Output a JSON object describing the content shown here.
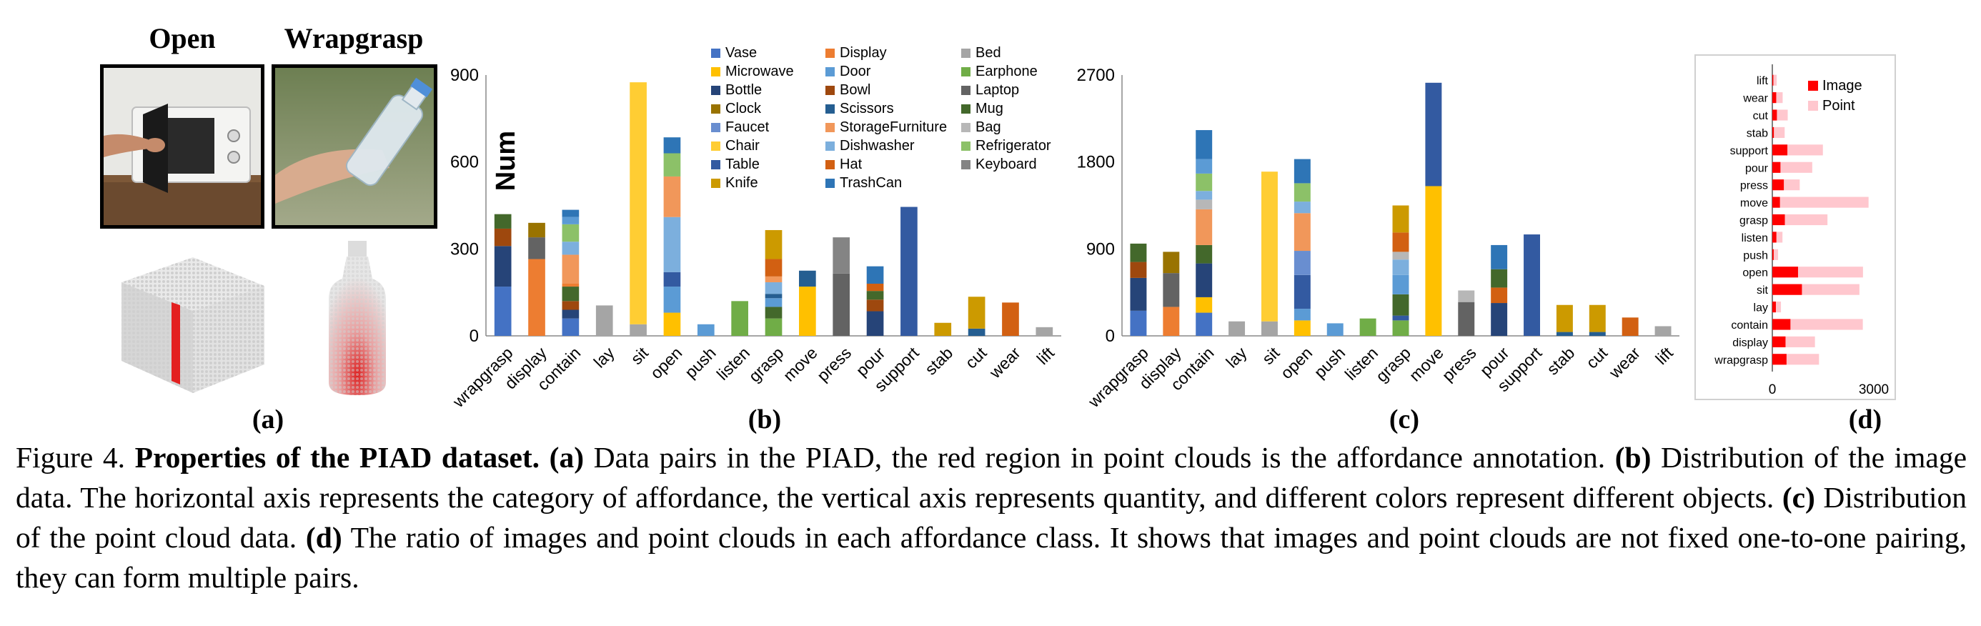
{
  "panel_a": {
    "titles": [
      "Open",
      "Wrapgrasp"
    ],
    "label": "(a)"
  },
  "panel_b": {
    "label": "(b)",
    "ylabel": "Num"
  },
  "panel_c": {
    "label": "(c)"
  },
  "panel_d": {
    "label": "(d)"
  },
  "colors": {
    "Vase": "#4472c4",
    "Display": "#ed7d31",
    "Bed": "#a5a5a5",
    "Microwave": "#ffc000",
    "Door": "#5b9bd5",
    "Earphone": "#70ad47",
    "Bottle": "#264478",
    "Bowl": "#9e480e",
    "Laptop": "#636363",
    "Clock": "#997300",
    "Scissors": "#255e91",
    "Mug": "#43682b",
    "Faucet": "#698ed0",
    "StorageFurniture": "#f1975a",
    "Bag": "#b7b7b7",
    "Chair": "#ffcd33",
    "Dishwasher": "#7cafdd",
    "Refrigerator": "#8cc168",
    "Table": "#335aa1",
    "Hat": "#d26012",
    "Keyboard": "#848484",
    "Knife": "#cc9a00",
    "TrashCan": "#2e75b6",
    "image_bar": "#ff0000",
    "point_bar": "#ffc7ce"
  },
  "chart_data": [
    {
      "type": "bar",
      "stacked": true,
      "title": "",
      "xlabel": "",
      "ylabel": "Num",
      "ylim": [
        0,
        900
      ],
      "yticks": [
        "0",
        "300",
        "600",
        "900"
      ],
      "categories": [
        "wrapgrasp",
        "display",
        "contain",
        "lay",
        "sit",
        "open",
        "push",
        "listen",
        "grasp",
        "move",
        "press",
        "pour",
        "support",
        "stab",
        "cut",
        "wear",
        "lift"
      ],
      "legend": [
        "Vase",
        "Display",
        "Bed",
        "Microwave",
        "Door",
        "Earphone",
        "Bottle",
        "Bowl",
        "Laptop",
        "Clock",
        "Scissors",
        "Mug",
        "Faucet",
        "StorageFurniture",
        "Bag",
        "Chair",
        "Dishwasher",
        "Refrigerator",
        "Table",
        "Hat",
        "Keyboard",
        "Knife",
        "TrashCan"
      ],
      "stacks": [
        [
          [
            "Vase",
            170
          ],
          [
            "Bottle",
            140
          ],
          [
            "Bowl",
            60
          ],
          [
            "Mug",
            50
          ]
        ],
        [
          [
            "Display",
            265
          ],
          [
            "Laptop",
            75
          ],
          [
            "Clock",
            50
          ]
        ],
        [
          [
            "Vase",
            60
          ],
          [
            "Bottle",
            30
          ],
          [
            "Bowl",
            30
          ],
          [
            "Mug",
            50
          ],
          [
            "Display",
            10
          ],
          [
            "StorageFurniture",
            100
          ],
          [
            "Dishwasher",
            45
          ],
          [
            "Refrigerator",
            60
          ],
          [
            "Door",
            25
          ],
          [
            "TrashCan",
            25
          ]
        ],
        [
          [
            "Bed",
            105
          ]
        ],
        [
          [
            "Bed",
            40
          ],
          [
            "Chair",
            835
          ]
        ],
        [
          [
            "Microwave",
            80
          ],
          [
            "Door",
            90
          ],
          [
            "Table",
            50
          ],
          [
            "Dishwasher",
            190
          ],
          [
            "StorageFurniture",
            140
          ],
          [
            "Refrigerator",
            80
          ],
          [
            "TrashCan",
            55
          ]
        ],
        [
          [
            "Door",
            40
          ]
        ],
        [
          [
            "Earphone",
            120
          ]
        ],
        [
          [
            "Earphone",
            60
          ],
          [
            "Mug",
            40
          ],
          [
            "Door",
            30
          ],
          [
            "Scissors",
            15
          ],
          [
            "Dishwasher",
            40
          ],
          [
            "StorageFurniture",
            20
          ],
          [
            "Hat",
            60
          ],
          [
            "Knife",
            100
          ]
        ],
        [
          [
            "Microwave",
            170
          ],
          [
            "Scissors",
            55
          ]
        ],
        [
          [
            "Laptop",
            215
          ],
          [
            "Keyboard",
            125
          ]
        ],
        [
          [
            "Bottle",
            85
          ],
          [
            "Bowl",
            40
          ],
          [
            "Mug",
            30
          ],
          [
            "Hat",
            25
          ],
          [
            "TrashCan",
            60
          ]
        ],
        [
          [
            "Table",
            445
          ]
        ],
        [
          [
            "Knife",
            45
          ]
        ],
        [
          [
            "Scissors",
            25
          ],
          [
            "Knife",
            110
          ]
        ],
        [
          [
            "Hat",
            115
          ]
        ],
        [
          [
            "Bed",
            30
          ]
        ]
      ]
    },
    {
      "type": "bar",
      "stacked": true,
      "title": "",
      "xlabel": "",
      "ylabel": "",
      "ylim": [
        0,
        2700
      ],
      "yticks": [
        "0",
        "900",
        "1800",
        "2700"
      ],
      "categories": [
        "wrapgrasp",
        "display",
        "contain",
        "lay",
        "sit",
        "open",
        "push",
        "listen",
        "grasp",
        "move",
        "press",
        "pour",
        "support",
        "stab",
        "cut",
        "wear",
        "lift"
      ],
      "stacks": [
        [
          [
            "Vase",
            260
          ],
          [
            "Bottle",
            340
          ],
          [
            "Bowl",
            165
          ],
          [
            "Mug",
            190
          ]
        ],
        [
          [
            "Display",
            300
          ],
          [
            "Laptop",
            350
          ],
          [
            "Clock",
            220
          ]
        ],
        [
          [
            "Vase",
            240
          ],
          [
            "Microwave",
            160
          ],
          [
            "Bottle",
            350
          ],
          [
            "Mug",
            190
          ],
          [
            "StorageFurniture",
            370
          ],
          [
            "Bag",
            100
          ],
          [
            "Dishwasher",
            90
          ],
          [
            "Refrigerator",
            180
          ],
          [
            "Door",
            150
          ],
          [
            "TrashCan",
            300
          ]
        ],
        [
          [
            "Bed",
            150
          ]
        ],
        [
          [
            "Bed",
            150
          ],
          [
            "Chair",
            1550
          ]
        ],
        [
          [
            "Microwave",
            160
          ],
          [
            "Door",
            120
          ],
          [
            "Table",
            350
          ],
          [
            "Faucet",
            250
          ],
          [
            "StorageFurniture",
            390
          ],
          [
            "Dishwasher",
            120
          ],
          [
            "Refrigerator",
            190
          ],
          [
            "TrashCan",
            250
          ]
        ],
        [
          [
            "Door",
            130
          ]
        ],
        [
          [
            "Earphone",
            180
          ]
        ],
        [
          [
            "Earphone",
            160
          ],
          [
            "Table",
            50
          ],
          [
            "Mug",
            220
          ],
          [
            "Door",
            200
          ],
          [
            "Dishwasher",
            160
          ],
          [
            "Bag",
            80
          ],
          [
            "Hat",
            200
          ],
          [
            "Knife",
            280
          ]
        ],
        [
          [
            "Microwave",
            1550
          ],
          [
            "Table",
            1070
          ]
        ],
        [
          [
            "Laptop",
            350
          ],
          [
            "Bag",
            120
          ]
        ],
        [
          [
            "Bottle",
            340
          ],
          [
            "Hat",
            160
          ],
          [
            "Mug",
            190
          ],
          [
            "TrashCan",
            250
          ]
        ],
        [
          [
            "Table",
            1050
          ]
        ],
        [
          [
            "Scissors",
            40
          ],
          [
            "Knife",
            280
          ]
        ],
        [
          [
            "Scissors",
            40
          ],
          [
            "Knife",
            280
          ]
        ],
        [
          [
            "Hat",
            190
          ]
        ],
        [
          [
            "Bed",
            100
          ]
        ]
      ]
    },
    {
      "type": "bar",
      "orientation": "horizontal",
      "title": "",
      "xlabel": "",
      "ylabel": "",
      "xlim": [
        0,
        3000
      ],
      "xticks": [
        "0",
        "3000"
      ],
      "legend": [
        "Image",
        "Point"
      ],
      "categories": [
        "lift",
        "wear",
        "cut",
        "stab",
        "support",
        "pour",
        "press",
        "move",
        "grasp",
        "listen",
        "push",
        "open",
        "sit",
        "lay",
        "contain",
        "display",
        "wrapgrasp"
      ],
      "series": [
        {
          "name": "Image",
          "values": [
            30,
            115,
            135,
            45,
            445,
            240,
            340,
            225,
            370,
            120,
            40,
            760,
            875,
            105,
            535,
            390,
            420
          ]
        },
        {
          "name": "Point",
          "values": [
            100,
            190,
            320,
            320,
            1050,
            940,
            470,
            2620,
            1260,
            180,
            130,
            1920,
            1700,
            150,
            2140,
            870,
            960
          ]
        }
      ]
    }
  ],
  "caption": {
    "fig": "Figure 4. ",
    "title": "Properties of the PIAD dataset.",
    "a_tag": "(a)",
    "a_text": " Data pairs in the PIAD, the red region in point clouds is the affordance annotation. ",
    "b_tag": "(b)",
    "b_text": " Distribution of the image data. The horizontal axis represents the category of affordance, the vertical axis represents quantity, and different colors represent different objects. ",
    "c_tag": "(c)",
    "c_text": " Distribution of the point cloud data. ",
    "d_tag": "(d)",
    "d_text": " The ratio of images and point clouds in each affordance class. It shows that images and point clouds are not fixed one-to-one pairing, they can form multiple pairs."
  }
}
